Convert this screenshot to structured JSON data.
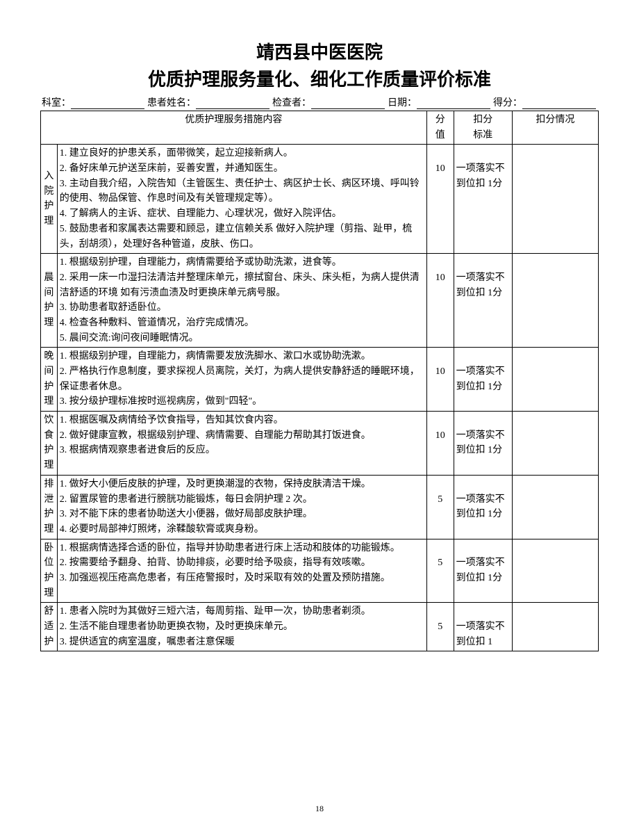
{
  "title_line1": "靖西县中医医院",
  "title_line2": "优质护理服务量化、细化工作质量评价标准",
  "info": {
    "dept": "科室：",
    "patient": "患者姓名：",
    "checker": "检查者：",
    "date": "日期：",
    "score": "得分："
  },
  "headers": {
    "content": "优质护理服务措施内容",
    "value": "分值",
    "deduct_std": "扣分标准",
    "deduct_case": "扣分情况"
  },
  "columns": {
    "cat_width": 22,
    "content_width": 493,
    "value_width": 36,
    "deduct_std_width": 78,
    "deduct_case_width": 115
  },
  "sections": [
    {
      "category": "入院护理",
      "value": "10",
      "deduct_std": "一项落实不到位扣 1分",
      "items": [
        "1. 建立良好的护患关系，面带微笑，起立迎接新病人。",
        "2. 备好床单元护送至床前，妥善安置，并通知医生。",
        "3. 主动自我介绍，入院告知（主管医生、责任护士、病区护士长、病区环境、呼叫铃的使用、物品保管、作息时间及有关管理规定等）。",
        "4. 了解病人的主诉、症状、自理能力、心理状况，做好入院评估。",
        "5. 鼓励患者和家属表达需要和顾忌，建立信赖关系 做好入院护理（剪指、趾甲，梳头，刮胡须），处理好各种管道，皮肤、伤口。"
      ]
    },
    {
      "category": "晨间护理",
      "value": "10",
      "deduct_std": "一项落实不到位扣 1分",
      "items": [
        "1. 根据级别护理，自理能力，病情需要给予或协助洗漱，进食等。",
        "2. 采用一床一巾湿扫法清洁并整理床单元，擦拭窗台、床头、床头柜，为病人提供清洁舒适的环境 如有污渍血渍及时更换床单元病号服。",
        "3. 协助患者取舒适卧位。",
        "4. 检查各种敷料、管道情况，治疗完成情况。",
        "5. 晨间交流:询问夜间睡眠情况。"
      ]
    },
    {
      "category": "晚间护理",
      "value": "10",
      "deduct_std": "一项落实不到位扣 1分",
      "items": [
        "1. 根据级别护理，自理能力，病情需要发放洗脚水、漱口水或协助洗漱。",
        "2. 严格执行作息制度，要求探视人员离院，关灯，为病人提供安静舒适的睡眠环境，保证患者休息。",
        "3. 按分级护理标准按时巡视病房，做到\"四轻\"。"
      ]
    },
    {
      "category": "饮食护理",
      "value": "10",
      "deduct_std": "一项落实不到位扣 1分",
      "items": [
        "1. 根据医嘱及病情给予饮食指导，告知其饮食内容。",
        "2. 做好健康宣教，根据级别护理、病情需要、自理能力帮助其打饭进食。",
        "3. 根据病情观察患者进食后的反应。",
        " "
      ]
    },
    {
      "category": "排泄护理",
      "value": "5",
      "deduct_std": "一项落实不到位扣 1分",
      "items": [
        "1. 做好大小便后皮肤的护理，及时更换潮湿的衣物，保持皮肤清洁干燥。",
        "2. 留置尿管的患者进行膀胱功能锻炼，每日会阴护理 2 次。",
        "3. 对不能下床的患者协助送大小便器，做好局部皮肤护理。",
        "4. 必要时局部神灯照烤，涂鞣酸软膏或爽身粉。"
      ]
    },
    {
      "category": "卧位护理",
      "value": "5",
      "deduct_std": "一项落实不到位扣 1分",
      "items": [
        "1. 根据病情选择合适的卧位，指导并协助患者进行床上活动和肢体的功能锻炼。",
        "2. 按需要给予翻身、拍背、协助排痰，必要时给予吸痰，指导有效咳嗽。",
        "3. 加强巡视压疮高危患者，有压疮警报时，及时采取有效的处置及预防措施。"
      ]
    },
    {
      "category": "舒适护",
      "value": "5",
      "deduct_std": "一项落实不到位扣 1",
      "items": [
        "1. 患者入院时为其做好三短六洁，每周剪指、趾甲一次，协助患者剃须。",
        "2. 生活不能自理患者协助更换衣物，及时更换床单元。",
        "3. 提供适宜的病室温度，嘱患者注意保暖"
      ]
    }
  ],
  "page_number": "18",
  "colors": {
    "text": "#000000",
    "bg": "#ffffff",
    "border": "#000000"
  },
  "fonts": {
    "title_size": 26,
    "body_size": 14,
    "footer_size": 12
  }
}
